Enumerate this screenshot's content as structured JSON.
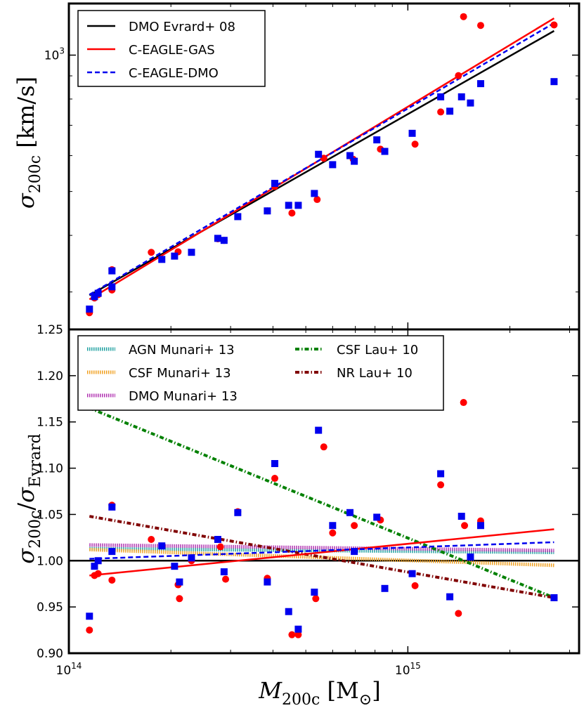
{
  "chart_data": [
    {
      "panel": "top",
      "type": "scatter",
      "xlabel": "M_200c [M_⊙]",
      "ylabel": "σ_200c [km/s]",
      "xscale": "log",
      "yscale": "log",
      "xlim": [
        100000000000000.0,
        3200000000000000.0
      ],
      "ylim": [
        248,
        1300
      ],
      "xticks": [
        {
          "value": 100000000000000.0,
          "base": "10",
          "exp": "14"
        },
        {
          "value": 1000000000000000.0,
          "base": "10",
          "exp": "15"
        }
      ],
      "yticks": [
        {
          "value": 1000,
          "base": "10",
          "exp": "3"
        }
      ],
      "legend": {
        "position": "top-left",
        "entries": [
          "DMO Evrard+ 08",
          "C-EAGLE-GAS",
          "C-EAGLE-DMO"
        ]
      },
      "lines": [
        {
          "name": "DMO Evrard+ 08",
          "color": "#000000",
          "dash": "solid",
          "x": [
            115000000000000.0,
            2700000000000000.0
          ],
          "y": [
            295,
            1131
          ]
        },
        {
          "name": "C-EAGLE-GAS",
          "color": "#ff0000",
          "dash": "solid",
          "x": [
            115000000000000.0,
            2700000000000000.0
          ],
          "y": [
            289,
            1206
          ]
        },
        {
          "name": "C-EAGLE-DMO",
          "color": "#0000ee",
          "dash": "dashed",
          "x": [
            115000000000000.0,
            2700000000000000.0
          ],
          "y": [
            296,
            1177
          ]
        }
      ],
      "series": [
        {
          "name": "C-EAGLE-GAS",
          "marker": "circle",
          "color": "#ff0000",
          "x": [
            115000000000000.0,
            119000000000000.0,
            122000000000000.0,
            134000000000000.0,
            134000000000000.0,
            175000000000000.0,
            210000000000000.0,
            275000000000000.0,
            287000000000000.0,
            385000000000000.0,
            405000000000000.0,
            455000000000000.0,
            540000000000000.0,
            565000000000000.0,
            690000000000000.0,
            830000000000000.0,
            1050000000000000.0,
            1250000000000000.0,
            1410000000000000.0,
            1460000000000000.0,
            1640000000000000.0,
            2700000000000000.0
          ],
          "y": [
            270,
            291,
            296,
            303,
            336,
            367,
            368,
            393,
            390,
            453,
            513,
            448,
            480,
            592,
            589,
            620,
            636,
            749,
            901,
            1216,
            1163,
            1166
          ]
        },
        {
          "name": "C-EAGLE-DMO",
          "marker": "square",
          "color": "#0000ee",
          "x": [
            115000000000000.0,
            119000000000000.0,
            122000000000000.0,
            134000000000000.0,
            134000000000000.0,
            188000000000000.0,
            205000000000000.0,
            230000000000000.0,
            275000000000000.0,
            287000000000000.0,
            315000000000000.0,
            385000000000000.0,
            405000000000000.0,
            445000000000000.0,
            475000000000000.0,
            530000000000000.0,
            545000000000000.0,
            600000000000000.0,
            675000000000000.0,
            695000000000000.0,
            810000000000000.0,
            855000000000000.0,
            1030000000000000.0,
            1250000000000000.0,
            1330000000000000.0,
            1440000000000000.0,
            1530000000000000.0,
            1640000000000000.0,
            2700000000000000.0
          ],
          "y": [
            275,
            293,
            298,
            308,
            334,
            354,
            360,
            367,
            394,
            390,
            440,
            453,
            521,
            466,
            466,
            495,
            604,
            573,
            600,
            583,
            650,
            613,
            672,
            809,
            752,
            809,
            784,
            865,
            874
          ]
        }
      ]
    },
    {
      "panel": "bottom",
      "type": "scatter",
      "xlabel": "M_200c [M_⊙]",
      "ylabel": "σ_200c / σ_Evrard",
      "xscale": "log",
      "xlim": [
        100000000000000.0,
        3200000000000000.0
      ],
      "ylim": [
        0.9,
        1.25
      ],
      "yticks": [
        "0.90",
        "0.95",
        "1.00",
        "1.05",
        "1.10",
        "1.15",
        "1.20",
        "1.25"
      ],
      "xticks": [
        {
          "value": 100000000000000.0,
          "base": "10",
          "exp": "14"
        },
        {
          "value": 1000000000000000.0,
          "base": "10",
          "exp": "15"
        }
      ],
      "reference_line": 1.0,
      "legend": {
        "position": "top",
        "entries": [
          "AGN Munari+ 13",
          "CSF Munari+ 13",
          "DMO Munari+ 13",
          "CSF Lau+ 10",
          "NR Lau+ 10"
        ]
      },
      "lines": [
        {
          "name": "AGN Munari+ 13",
          "color": "#20a0a0",
          "style": "dotted",
          "x": [
            115000000000000.0,
            2700000000000000.0
          ],
          "y": [
            1.013,
            1.009
          ]
        },
        {
          "name": "CSF Munari+ 13",
          "color": "#f0a020",
          "style": "dotted",
          "x": [
            115000000000000.0,
            2700000000000000.0
          ],
          "y": [
            1.012,
            0.995
          ]
        },
        {
          "name": "DMO Munari+ 13",
          "color": "#b030b0",
          "style": "dotted",
          "x": [
            115000000000000.0,
            2700000000000000.0
          ],
          "y": [
            1.017,
            1.011
          ]
        },
        {
          "name": "CSF Lau+ 10",
          "color": "#008000",
          "style": "dashdot",
          "x": [
            115000000000000.0,
            2700000000000000.0
          ],
          "y": [
            1.165,
            0.96
          ]
        },
        {
          "name": "NR Lau+ 10",
          "color": "#800000",
          "style": "dashdot",
          "x": [
            115000000000000.0,
            2700000000000000.0
          ],
          "y": [
            1.048,
            0.96
          ]
        },
        {
          "name": "C-EAGLE-GAS fit",
          "color": "#ff0000",
          "style": "solid",
          "x": [
            115000000000000.0,
            2700000000000000.0
          ],
          "y": [
            0.984,
            1.034
          ]
        },
        {
          "name": "C-EAGLE-DMO fit",
          "color": "#0000ee",
          "style": "dashed",
          "x": [
            115000000000000.0,
            2700000000000000.0
          ],
          "y": [
            1.002,
            1.02
          ]
        }
      ],
      "series": [
        {
          "name": "C-EAGLE-GAS",
          "marker": "circle",
          "color": "#ff0000",
          "x": [
            115000000000000.0,
            119000000000000.0,
            122000000000000.0,
            134000000000000.0,
            134000000000000.0,
            175000000000000.0,
            210000000000000.0,
            212000000000000.0,
            230000000000000.0,
            280000000000000.0,
            290000000000000.0,
            315000000000000.0,
            385000000000000.0,
            405000000000000.0,
            455000000000000.0,
            475000000000000.0,
            535000000000000.0,
            565000000000000.0,
            600000000000000.0,
            695000000000000.0,
            830000000000000.0,
            1050000000000000.0,
            1250000000000000.0,
            1410000000000000.0,
            1460000000000000.0,
            1470000000000000.0,
            1640000000000000.0,
            2700000000000000.0
          ],
          "y": [
            0.925,
            0.984,
            0.986,
            0.979,
            1.06,
            1.023,
            0.974,
            0.959,
            1.0,
            1.015,
            0.98,
            1.053,
            0.981,
            1.089,
            0.92,
            0.92,
            0.959,
            1.123,
            1.03,
            1.038,
            1.044,
            0.973,
            1.082,
            0.943,
            1.171,
            1.038,
            1.043,
            0.96
          ]
        },
        {
          "name": "C-EAGLE-DMO",
          "marker": "square",
          "color": "#0000ee",
          "x": [
            115000000000000.0,
            119000000000000.0,
            122000000000000.0,
            134000000000000.0,
            134000000000000.0,
            188000000000000.0,
            205000000000000.0,
            212000000000000.0,
            230000000000000.0,
            275000000000000.0,
            287000000000000.0,
            315000000000000.0,
            385000000000000.0,
            405000000000000.0,
            445000000000000.0,
            475000000000000.0,
            530000000000000.0,
            545000000000000.0,
            600000000000000.0,
            675000000000000.0,
            695000000000000.0,
            810000000000000.0,
            855000000000000.0,
            1030000000000000.0,
            1250000000000000.0,
            1330000000000000.0,
            1440000000000000.0,
            1530000000000000.0,
            1640000000000000.0,
            2700000000000000.0
          ],
          "y": [
            0.94,
            0.994,
            1.0,
            1.01,
            1.058,
            1.016,
            0.994,
            0.977,
            1.003,
            1.023,
            0.988,
            1.052,
            0.977,
            1.105,
            0.945,
            0.926,
            0.966,
            1.141,
            1.038,
            1.052,
            1.01,
            1.047,
            0.97,
            0.986,
            1.094,
            0.961,
            1.048,
            1.004,
            1.038,
            0.96
          ]
        }
      ]
    }
  ]
}
